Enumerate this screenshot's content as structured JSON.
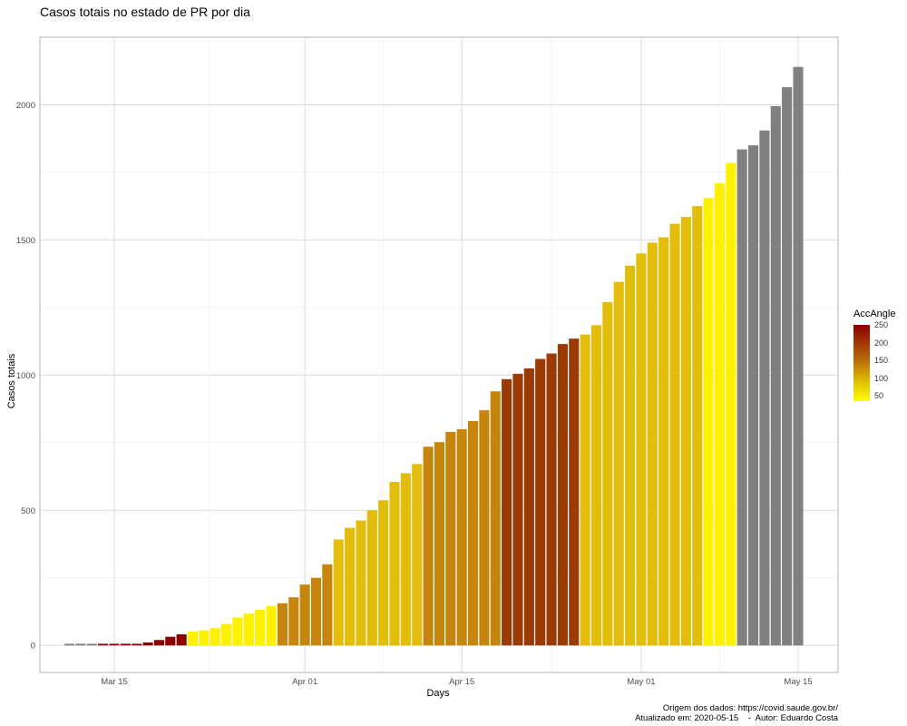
{
  "chart_data": {
    "type": "bar",
    "title": "Casos totais no estado de PR por dia",
    "xlabel": "Days",
    "ylabel": "Casos totais",
    "caption_line1": "Origem dos dados: https://covid.saude.gov.br/",
    "caption_line2": "Atualizado em: 2020-05-15    -  Autor: Eduardo Costa",
    "x_start": "2020-03-11",
    "x_ticks": [
      {
        "label": "Mar 15",
        "date": "2020-03-15"
      },
      {
        "label": "Apr 01",
        "date": "2020-04-01"
      },
      {
        "label": "Apr 15",
        "date": "2020-04-15"
      },
      {
        "label": "May 01",
        "date": "2020-05-01"
      },
      {
        "label": "May 15",
        "date": "2020-05-15"
      }
    ],
    "y_ticks": [
      0,
      500,
      1000,
      1500,
      2000
    ],
    "ylim": [
      -100,
      2250
    ],
    "grid": true,
    "legend": {
      "title": "AccAngle",
      "labels": [
        "250",
        "200",
        "150",
        "100",
        "50"
      ],
      "placement": "right"
    },
    "values": [
      6,
      6,
      6,
      6,
      6,
      6,
      6,
      11,
      20,
      32,
      41,
      51,
      56,
      64,
      80,
      103,
      118,
      132,
      146,
      156,
      178,
      225,
      250,
      300,
      392,
      435,
      462,
      500,
      537,
      605,
      637,
      671,
      735,
      752,
      790,
      800,
      830,
      870,
      940,
      985,
      1005,
      1025,
      1060,
      1080,
      1115,
      1135,
      1150,
      1185,
      1270,
      1345,
      1405,
      1450,
      1490,
      1510,
      1560,
      1585,
      1625,
      1655,
      1710,
      1785,
      1835,
      1850,
      1905,
      1995,
      2065,
      2140
    ],
    "colors": [
      "#808080",
      "#808080",
      "#808080",
      "#8b0000",
      "#8b0000",
      "#8b0000",
      "#8b0000",
      "#8b0000",
      "#8b0000",
      "#8b0000",
      "#8b0000",
      "#fdf100",
      "#fdf100",
      "#fdf100",
      "#fdf100",
      "#fdf100",
      "#fdf100",
      "#fdf100",
      "#fdf100",
      "#c6850c",
      "#c6850c",
      "#c6850c",
      "#c6850c",
      "#c6850c",
      "#e3bd0c",
      "#e3bd0c",
      "#e3bd0c",
      "#e3bd0c",
      "#e3bd0c",
      "#e3bd0c",
      "#e3bd0c",
      "#e3bd0c",
      "#c6850c",
      "#c6850c",
      "#c6850c",
      "#c6850c",
      "#c6850c",
      "#c6850c",
      "#c6850c",
      "#9b3a05",
      "#9b3a05",
      "#9b3a05",
      "#9b3a05",
      "#9b3a05",
      "#9b3a05",
      "#9b3a05",
      "#e3bd0c",
      "#e3bd0c",
      "#e3bd0c",
      "#e3bd0c",
      "#e3bd0c",
      "#e3bd0c",
      "#e3bd0c",
      "#e3bd0c",
      "#e3bd0c",
      "#e3bd0c",
      "#e3bd0c",
      "#fdf100",
      "#fdf100",
      "#fdf100",
      "#808080",
      "#808080",
      "#808080",
      "#808080",
      "#808080",
      "#808080"
    ]
  }
}
